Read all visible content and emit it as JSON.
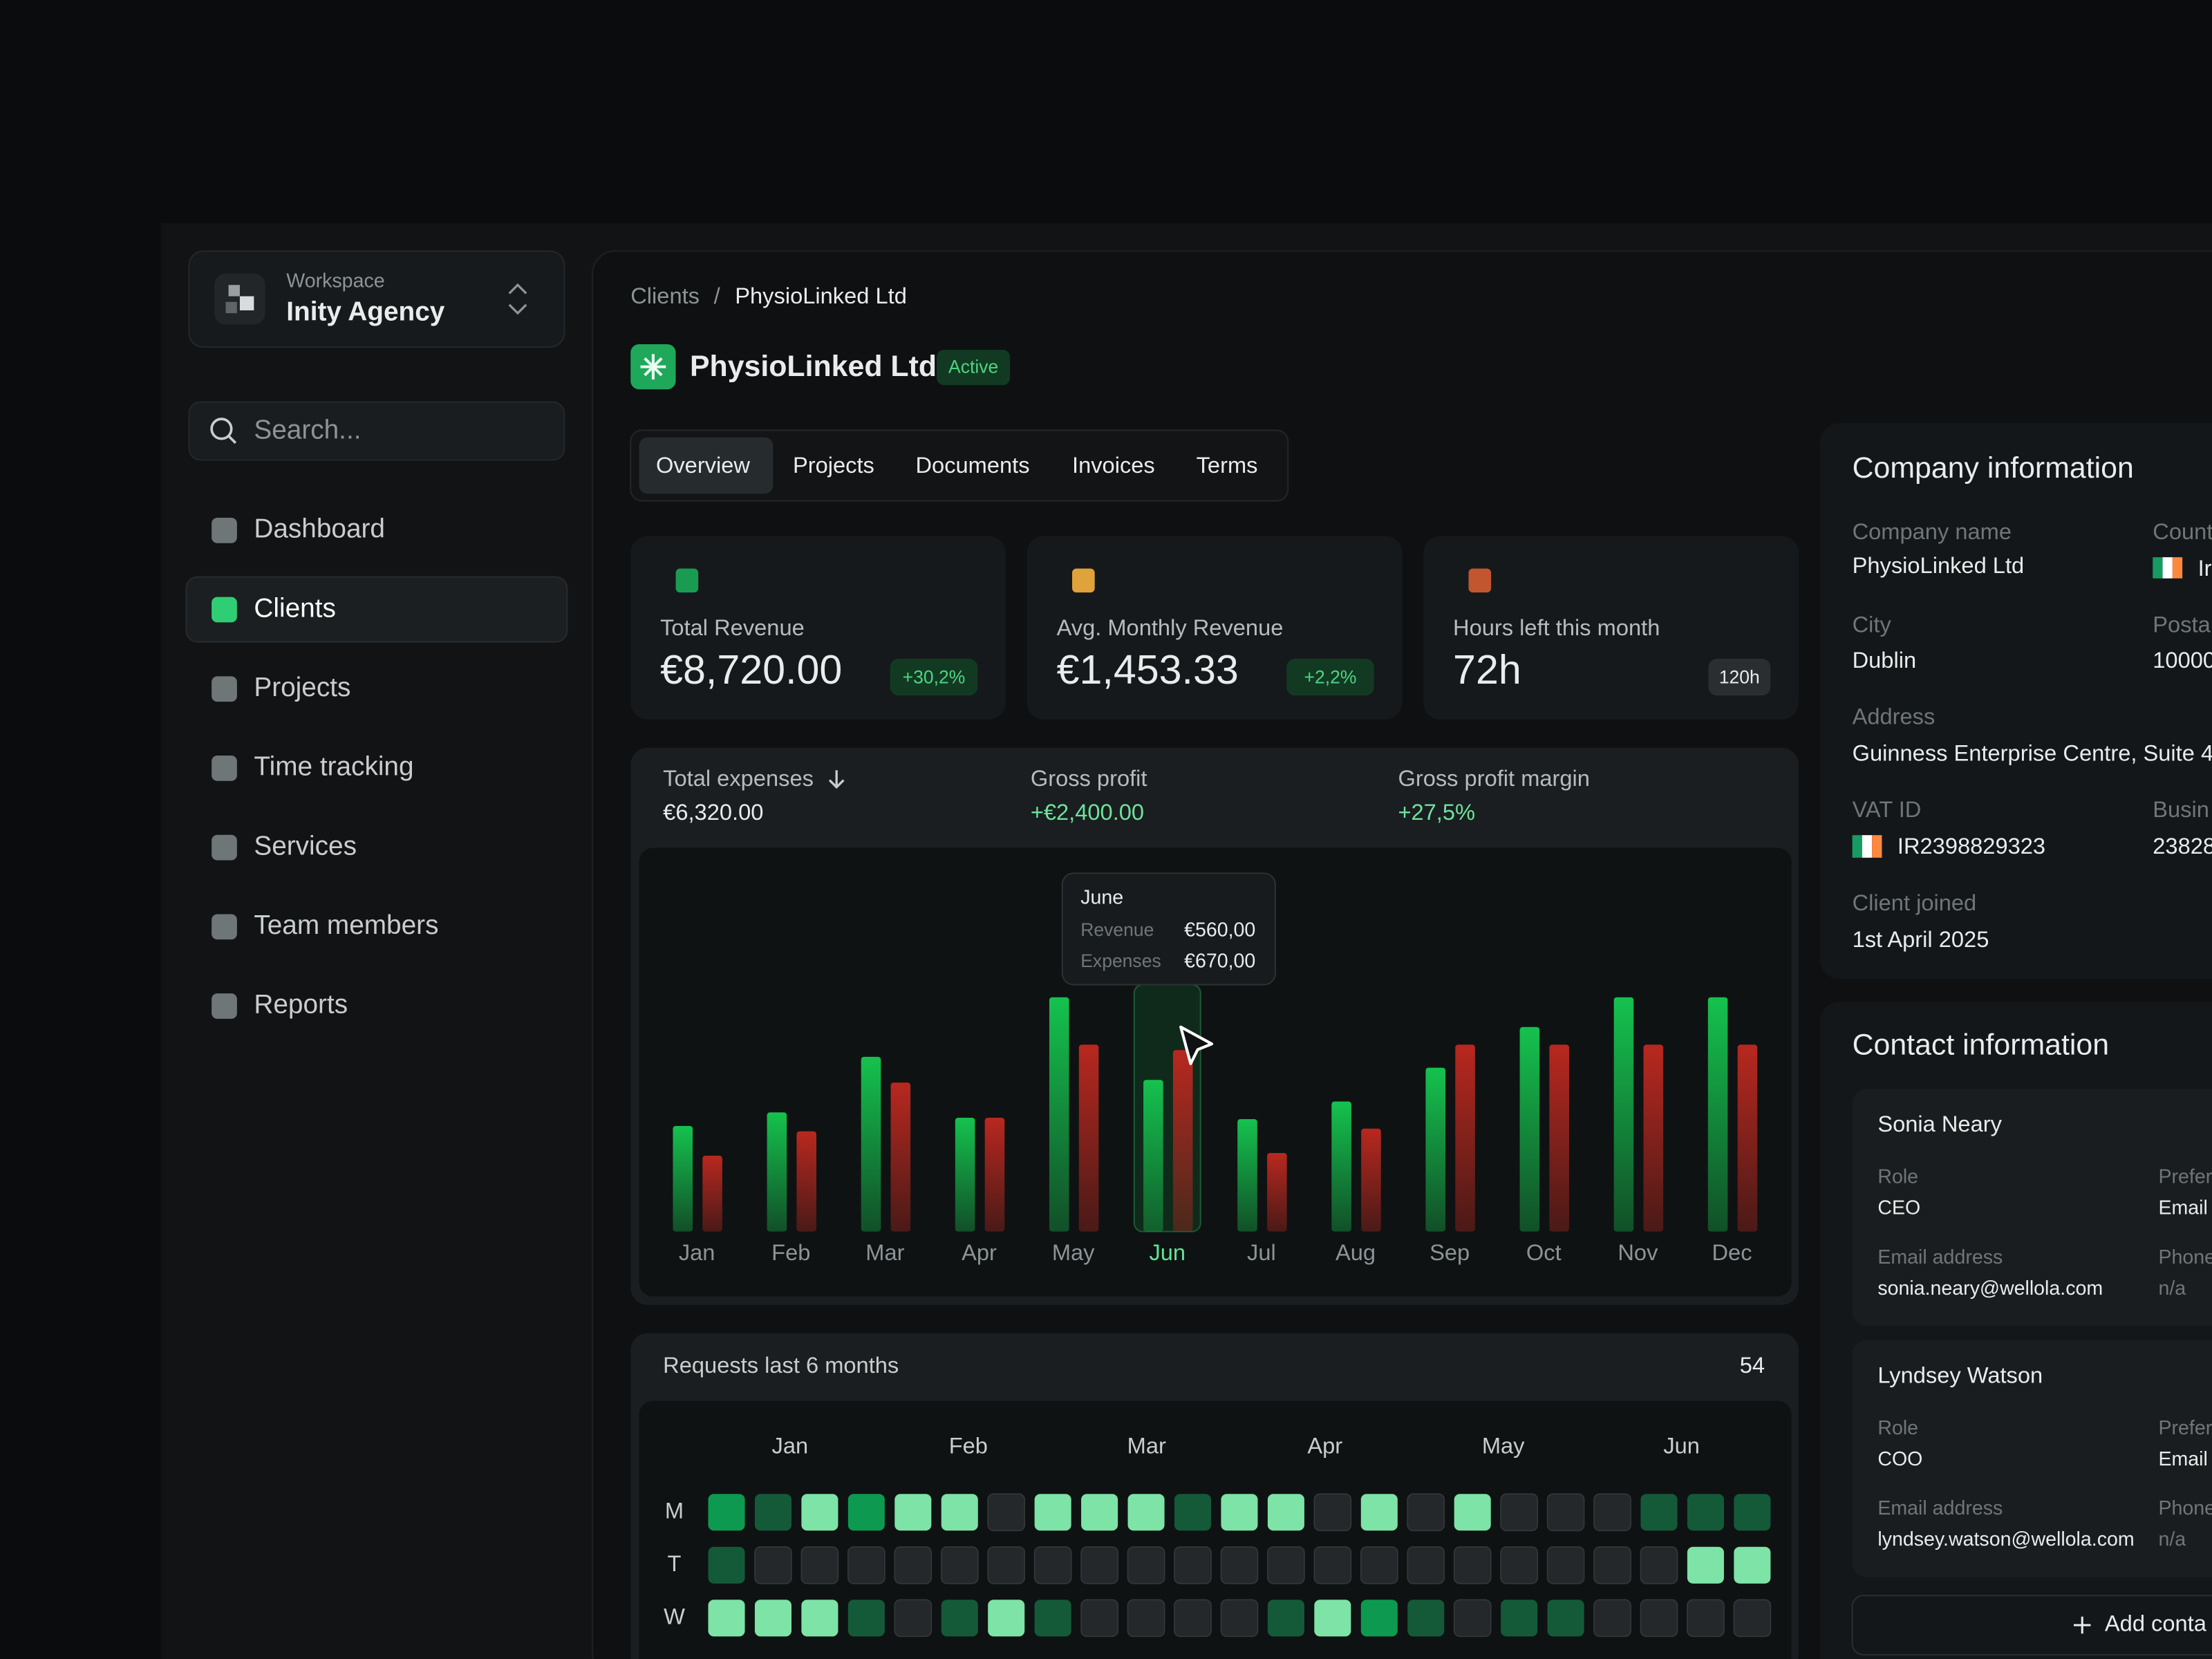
{
  "sidebar": {
    "workspace_label": "Workspace",
    "workspace_name": "Inity Agency",
    "search_placeholder": "Search...",
    "nav": [
      "Dashboard",
      "Clients",
      "Projects",
      "Time tracking",
      "Services",
      "Team members",
      "Reports"
    ]
  },
  "breadcrumb": {
    "parent": "Clients",
    "separator": "/",
    "current": "PhysioLinked Ltd"
  },
  "client": {
    "name": "PhysioLinked Ltd",
    "status": "Active"
  },
  "tabs": [
    "Overview",
    "Projects",
    "Documents",
    "Invoices",
    "Terms"
  ],
  "stats": [
    {
      "label": "Total Revenue",
      "value": "€8,720.00",
      "badge": "+30,2%"
    },
    {
      "label": "Avg. Monthly Revenue",
      "value": "€1,453.33",
      "badge": "+2,2%"
    },
    {
      "label": "Hours left this month",
      "value": "72h",
      "badge": "120h"
    }
  ],
  "summary": [
    {
      "label": "Total expenses",
      "value": "€6,320.00"
    },
    {
      "label": "Gross profit",
      "value": "+€2,400.00"
    },
    {
      "label": "Gross profit margin",
      "value": "+27,5%"
    }
  ],
  "chart_data": {
    "type": "bar",
    "categories": [
      "Jan",
      "Feb",
      "Mar",
      "Apr",
      "May",
      "Jun",
      "Jul",
      "Aug",
      "Sep",
      "Oct",
      "Nov",
      "Dec"
    ],
    "series": [
      {
        "name": "Revenue",
        "color": "#15c24e",
        "values": [
          390,
          440,
          645,
          420,
          865,
          560,
          415,
          480,
          605,
          755,
          865,
          865
        ]
      },
      {
        "name": "Expenses",
        "color": "#b8281f",
        "values": [
          280,
          370,
          550,
          420,
          690,
          670,
          290,
          380,
          690,
          690,
          690,
          690
        ]
      }
    ],
    "ylim": [
      0,
      1000
    ],
    "highlight": "Jun",
    "tooltip": {
      "title": "June",
      "values": [
        "€560,00",
        "€670,00"
      ]
    }
  },
  "requests": {
    "title": "Requests last 6 months",
    "total": 54,
    "months": [
      "Jan",
      "Feb",
      "Mar",
      "Apr",
      "May",
      "Jun"
    ],
    "days": [
      "M",
      "T",
      "W"
    ],
    "colors": [
      "#25282a",
      "#145a39",
      "#0d9950",
      "#7de3a7"
    ],
    "levels": [
      [
        2,
        1,
        3,
        2,
        3,
        3,
        0,
        3,
        3,
        3,
        1,
        3,
        3,
        0,
        3,
        0,
        3,
        0,
        0,
        0,
        1,
        1,
        1
      ],
      [
        1,
        0,
        0,
        0,
        0,
        0,
        0,
        0,
        0,
        0,
        0,
        0,
        0,
        0,
        0,
        0,
        0,
        0,
        0,
        0,
        0,
        3,
        3
      ],
      [
        3,
        3,
        3,
        1,
        0,
        1,
        3,
        1,
        0,
        0,
        0,
        0,
        1,
        3,
        2,
        1,
        0,
        1,
        1,
        0,
        0,
        0,
        0
      ]
    ]
  },
  "company": {
    "title": "Company information",
    "name_label": "Company name",
    "name": "PhysioLinked Ltd",
    "country_label": "Count",
    "country": "Ir",
    "city_label": "City",
    "city": "Dublin",
    "postal_label": "Posta",
    "postal": "10000",
    "address_label": "Address",
    "address": "Guinness Enterprise Centre, Suite 4",
    "vat_label": "VAT ID",
    "vat": "IR2398829323",
    "business_label": "Busin",
    "business": "23828",
    "joined_label": "Client joined",
    "joined": "1st April 2025"
  },
  "contacts": {
    "title": "Contact information",
    "people": [
      {
        "name": "Sonia Neary",
        "role_label": "Role",
        "role": "CEO",
        "pref_label": "Prefer",
        "pref": "Email",
        "email_label": "Email address",
        "email": "sonia.neary@wellola.com",
        "phone_label": "Phone",
        "phone": "n/a"
      },
      {
        "name": "Lyndsey Watson",
        "role_label": "Role",
        "role": "COO",
        "pref_label": "Prefer",
        "pref": "Email",
        "email_label": "Email address",
        "email": "lyndsey.watson@wellola.com",
        "phone_label": "Phone",
        "phone": "n/a"
      }
    ],
    "add": "Add conta"
  }
}
